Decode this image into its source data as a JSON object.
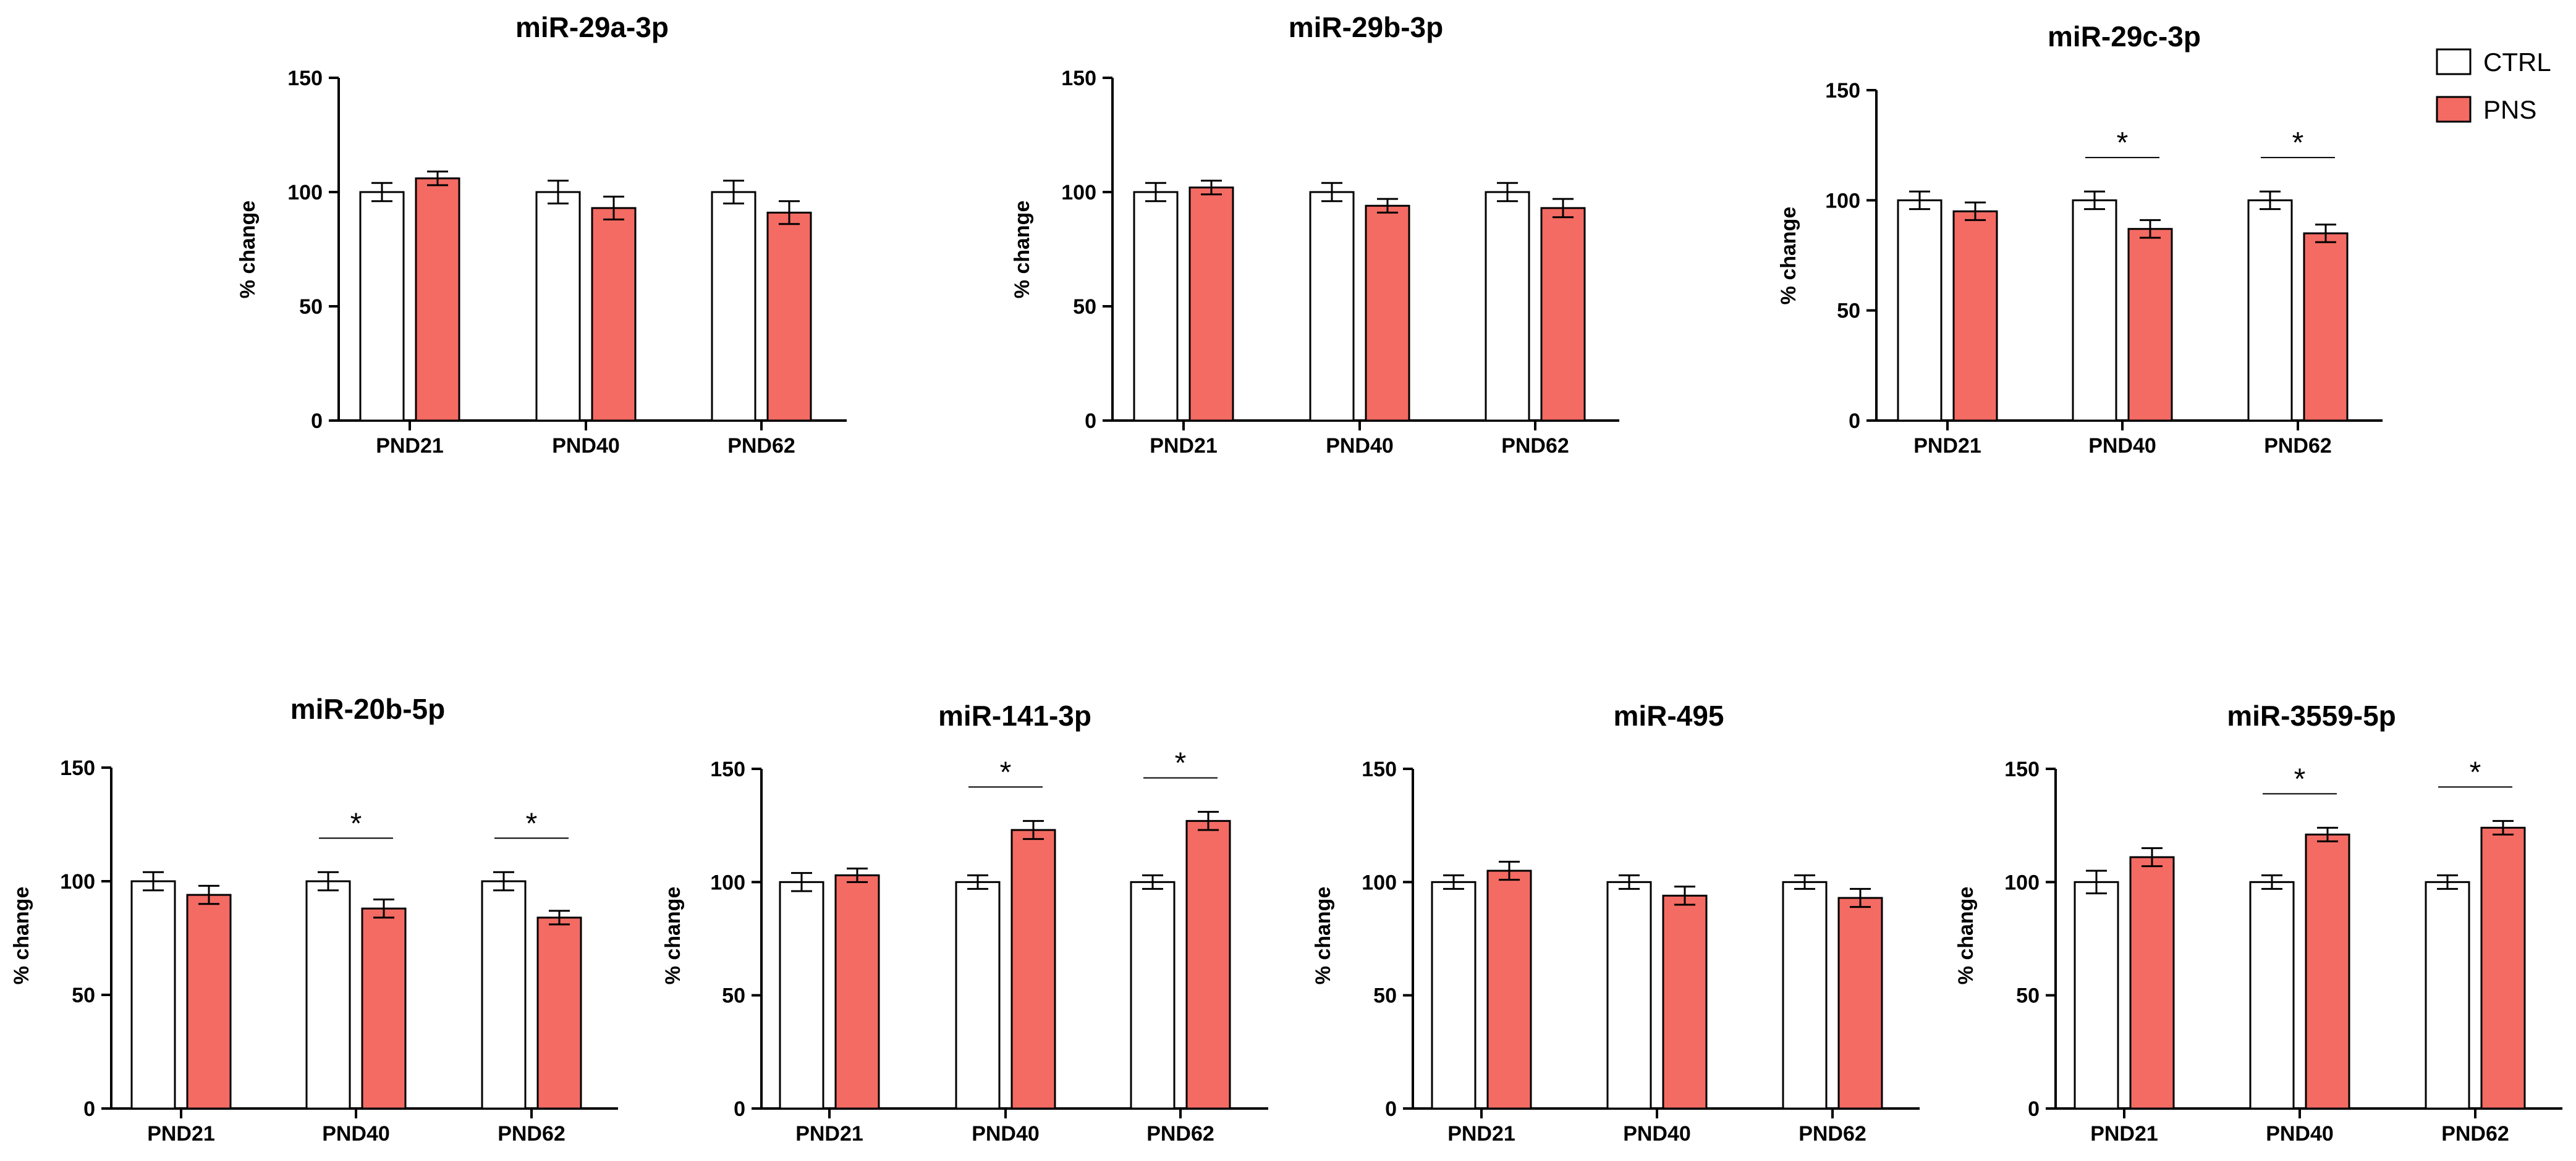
{
  "chart_data": [
    {
      "type": "bar",
      "title": "miR-29a-3p",
      "ylabel": "% change",
      "xlabel": "",
      "categories": [
        "PND21",
        "PND40",
        "PND62"
      ],
      "yticks": [
        "0",
        "50",
        "100",
        "150"
      ],
      "ylim": [
        0,
        150
      ],
      "series": [
        {
          "name": "CTRL",
          "values": [
            100,
            100,
            100
          ],
          "errors": [
            4,
            5,
            5
          ]
        },
        {
          "name": "PNS",
          "values": [
            106,
            93,
            91
          ],
          "errors": [
            3,
            5,
            5
          ]
        }
      ],
      "significance": [
        {
          "category": "",
          "label": ""
        },
        {
          "category": "",
          "label": ""
        },
        {
          "category": "",
          "label": ""
        }
      ]
    },
    {
      "type": "bar",
      "title": "miR-29b-3p",
      "ylabel": "% change",
      "xlabel": "",
      "categories": [
        "PND21",
        "PND40",
        "PND62"
      ],
      "yticks": [
        "0",
        "50",
        "100",
        "150"
      ],
      "ylim": [
        0,
        150
      ],
      "series": [
        {
          "name": "CTRL",
          "values": [
            100,
            100,
            100
          ],
          "errors": [
            4,
            4,
            4
          ]
        },
        {
          "name": "PNS",
          "values": [
            102,
            94,
            93
          ],
          "errors": [
            3,
            3,
            4
          ]
        }
      ],
      "significance": [
        {
          "category": "",
          "label": ""
        },
        {
          "category": "",
          "label": ""
        },
        {
          "category": "",
          "label": ""
        }
      ]
    },
    {
      "type": "bar",
      "title": "miR-29c-3p",
      "ylabel": "% change",
      "xlabel": "",
      "categories": [
        "PND21",
        "PND40",
        "PND62"
      ],
      "yticks": [
        "0",
        "50",
        "100",
        "150"
      ],
      "ylim": [
        0,
        150
      ],
      "series": [
        {
          "name": "CTRL",
          "values": [
            100,
            100,
            100
          ],
          "errors": [
            4,
            4,
            4
          ]
        },
        {
          "name": "PNS",
          "values": [
            95,
            87,
            85
          ],
          "errors": [
            4,
            4,
            4
          ]
        }
      ],
      "significance": [
        {
          "category": "",
          "label": ""
        },
        {
          "category": "PND40",
          "label": "*"
        },
        {
          "category": "PND62",
          "label": "*"
        }
      ]
    },
    {
      "type": "bar",
      "title": "miR-20b-5p",
      "ylabel": "% change",
      "xlabel": "",
      "categories": [
        "PND21",
        "PND40",
        "PND62"
      ],
      "yticks": [
        "0",
        "50",
        "100",
        "150"
      ],
      "ylim": [
        0,
        150
      ],
      "series": [
        {
          "name": "CTRL",
          "values": [
            100,
            100,
            100
          ],
          "errors": [
            4,
            4,
            4
          ]
        },
        {
          "name": "PNS",
          "values": [
            94,
            88,
            84
          ],
          "errors": [
            4,
            4,
            3
          ]
        }
      ],
      "significance": [
        {
          "category": "",
          "label": ""
        },
        {
          "category": "PND40",
          "label": "*"
        },
        {
          "category": "PND62",
          "label": "*"
        }
      ]
    },
    {
      "type": "bar",
      "title": "miR-141-3p",
      "ylabel": "% change",
      "xlabel": "",
      "categories": [
        "PND21",
        "PND40",
        "PND62"
      ],
      "yticks": [
        "0",
        "50",
        "100",
        "150"
      ],
      "ylim": [
        0,
        150
      ],
      "series": [
        {
          "name": "CTRL",
          "values": [
            100,
            100,
            100
          ],
          "errors": [
            4,
            3,
            3
          ]
        },
        {
          "name": "PNS",
          "values": [
            103,
            123,
            127
          ],
          "errors": [
            3,
            4,
            4
          ]
        }
      ],
      "significance": [
        {
          "category": "",
          "label": ""
        },
        {
          "category": "PND40",
          "label": "*"
        },
        {
          "category": "PND62",
          "label": "*"
        }
      ]
    },
    {
      "type": "bar",
      "title": "miR-495",
      "ylabel": "% change",
      "xlabel": "",
      "categories": [
        "PND21",
        "PND40",
        "PND62"
      ],
      "yticks": [
        "0",
        "50",
        "100",
        "150"
      ],
      "ylim": [
        0,
        150
      ],
      "series": [
        {
          "name": "CTRL",
          "values": [
            100,
            100,
            100
          ],
          "errors": [
            3,
            3,
            3
          ]
        },
        {
          "name": "PNS",
          "values": [
            105,
            94,
            93
          ],
          "errors": [
            4,
            4,
            4
          ]
        }
      ],
      "significance": [
        {
          "category": "",
          "label": ""
        },
        {
          "category": "",
          "label": ""
        },
        {
          "category": "",
          "label": ""
        }
      ]
    },
    {
      "type": "bar",
      "title": "miR-3559-5p",
      "ylabel": "% change",
      "xlabel": "",
      "categories": [
        "PND21",
        "PND40",
        "PND62"
      ],
      "yticks": [
        "0",
        "50",
        "100",
        "150"
      ],
      "ylim": [
        0,
        150
      ],
      "series": [
        {
          "name": "CTRL",
          "values": [
            100,
            100,
            100
          ],
          "errors": [
            5,
            3,
            3
          ]
        },
        {
          "name": "PNS",
          "values": [
            111,
            121,
            124
          ],
          "errors": [
            4,
            3,
            3
          ]
        }
      ],
      "significance": [
        {
          "category": "",
          "label": ""
        },
        {
          "category": "PND40",
          "label": "*"
        },
        {
          "category": "PND62",
          "label": "*"
        }
      ]
    }
  ],
  "legend": {
    "position": "top-right",
    "items": [
      {
        "label": "CTRL",
        "color": "#ffffff"
      },
      {
        "label": "PNS",
        "color": "#f36b63"
      }
    ]
  },
  "colors": {
    "ctrl_fill": "#ffffff",
    "pns_fill": "#f36b63",
    "stroke": "#000000"
  }
}
